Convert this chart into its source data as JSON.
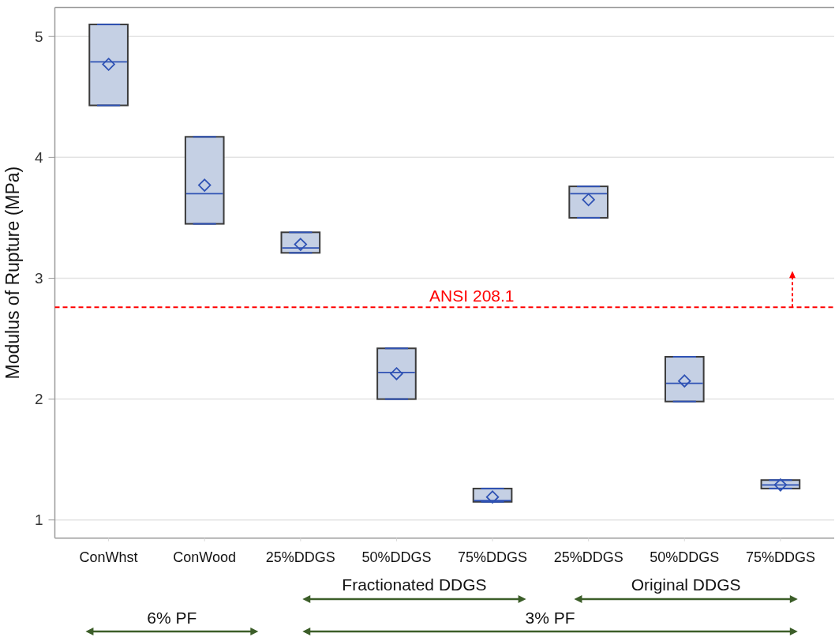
{
  "chart_data": {
    "type": "box",
    "categories": [
      "ConWhst",
      "ConWood",
      "25%DDGS",
      "50%DDGS",
      "75%DDGS",
      "25%DDGS",
      "50%DDGS",
      "75%DDGS"
    ],
    "boxes": [
      {
        "low": 4.43,
        "q1": 4.43,
        "median": 4.79,
        "q3": 5.1,
        "high": 5.1,
        "mean": 4.77
      },
      {
        "low": 3.45,
        "q1": 3.45,
        "median": 3.7,
        "q3": 4.17,
        "high": 4.17,
        "mean": 3.77
      },
      {
        "low": 3.21,
        "q1": 3.21,
        "median": 3.25,
        "q3": 3.38,
        "high": 3.38,
        "mean": 3.28
      },
      {
        "low": 2.0,
        "q1": 2.0,
        "median": 2.22,
        "q3": 2.42,
        "high": 2.42,
        "mean": 2.21
      },
      {
        "low": 1.15,
        "q1": 1.15,
        "median": 1.16,
        "q3": 1.26,
        "high": 1.26,
        "mean": 1.19
      },
      {
        "low": 3.5,
        "q1": 3.5,
        "median": 3.7,
        "q3": 3.76,
        "high": 3.76,
        "mean": 3.65
      },
      {
        "low": 1.98,
        "q1": 1.98,
        "median": 2.13,
        "q3": 2.35,
        "high": 2.35,
        "mean": 2.15
      },
      {
        "low": 1.26,
        "q1": 1.26,
        "median": 1.29,
        "q3": 1.33,
        "high": 1.33,
        "mean": 1.29
      }
    ],
    "color": "#c5d0e4",
    "marker": "diamond",
    "ylabel": "Modulus of Rupture (MPa)",
    "ylim": [
      0.85,
      5.24
    ],
    "yticks": [
      1,
      2,
      3,
      4,
      5
    ],
    "grid": "y",
    "ref_lines": [
      {
        "axis": "y",
        "value": 2.76,
        "label": "ANSI 208.1",
        "color": "#ff0000",
        "line_style": "dashed"
      }
    ],
    "annotations": [
      "Fractionated DDGS",
      "Original DDGS",
      "6% PF",
      "3% PF"
    ]
  }
}
